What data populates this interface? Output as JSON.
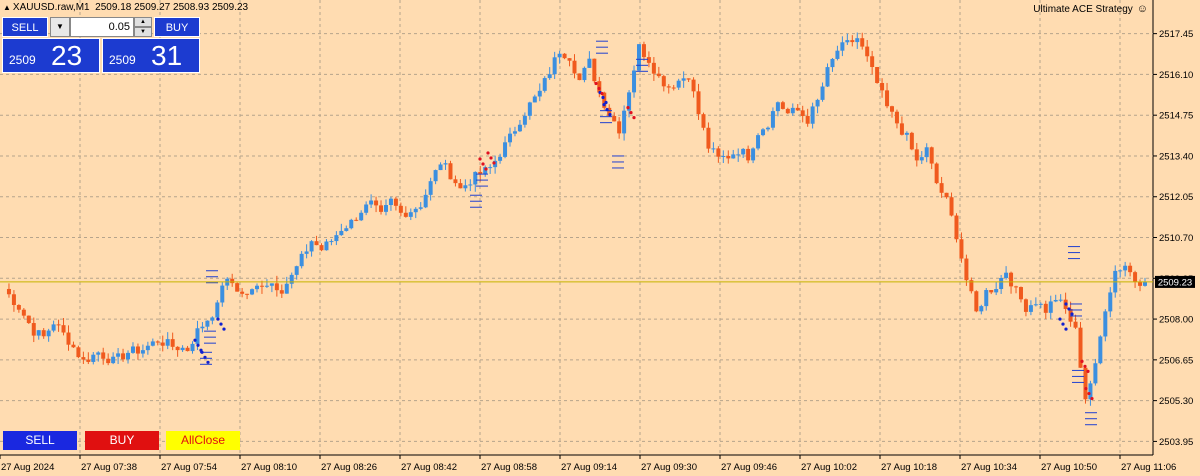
{
  "header": {
    "symbol": "XAUUSD.raw,M1",
    "ohlc": "2509.18 2509.27 2508.93 2509.23",
    "indicator_name": "Ultimate ACE Strategy",
    "indicator_icon": "smiley-icon"
  },
  "trade_panel": {
    "sell_label": "SELL",
    "buy_label": "BUY",
    "lot_value": "0.05",
    "sell_price_small": "2509",
    "sell_price_big": "23",
    "buy_price_small": "2509",
    "buy_price_big": "31"
  },
  "bottom_buttons": {
    "sell": "SELL",
    "buy": "BUY",
    "all_close": "AllClose"
  },
  "colors": {
    "background": "#ffdcb1",
    "grid": "#b6a48c",
    "bull": "#3b8fe0",
    "bear": "#f05a1e",
    "current_price_line": "#c8b400",
    "panel_blue": "#1c3bd0"
  },
  "chart_data": {
    "type": "candlestick",
    "current_price": "2509.23",
    "y_ticks": [
      "2517.45",
      "2516.10",
      "2514.75",
      "2513.40",
      "2512.05",
      "2510.70",
      "2509.35",
      "2508.00",
      "2506.65",
      "2505.30",
      "2503.95"
    ],
    "x_ticks": [
      "27 Aug 2024",
      "27 Aug 07:38",
      "27 Aug 07:54",
      "27 Aug 08:10",
      "27 Aug 08:26",
      "27 Aug 08:42",
      "27 Aug 08:58",
      "27 Aug 09:14",
      "27 Aug 09:30",
      "27 Aug 09:46",
      "27 Aug 10:02",
      "27 Aug 10:18",
      "27 Aug 10:34",
      "27 Aug 10:50",
      "27 Aug 11:06"
    ],
    "ylim": [
      2503.5,
      2518.1
    ],
    "grid": true,
    "close_path": [
      [
        0,
        2509.0
      ],
      [
        3,
        2508.4
      ],
      [
        6,
        2507.6
      ],
      [
        8,
        2507.4
      ],
      [
        10,
        2507.9
      ],
      [
        13,
        2507.3
      ],
      [
        16,
        2506.6
      ],
      [
        19,
        2506.9
      ],
      [
        22,
        2506.6
      ],
      [
        25,
        2506.9
      ],
      [
        28,
        2507.0
      ],
      [
        31,
        2507.3
      ],
      [
        34,
        2507.1
      ],
      [
        37,
        2507.0
      ],
      [
        39,
        2507.6
      ],
      [
        41,
        2508.0
      ],
      [
        43,
        2508.4
      ],
      [
        44,
        2509.2
      ],
      [
        46,
        2509.2
      ],
      [
        48,
        2508.8
      ],
      [
        50,
        2508.9
      ],
      [
        52,
        2509.2
      ],
      [
        54,
        2509.2
      ],
      [
        56,
        2509.0
      ],
      [
        58,
        2509.4
      ],
      [
        60,
        2510.0
      ],
      [
        62,
        2510.6
      ],
      [
        64,
        2510.3
      ],
      [
        66,
        2510.6
      ],
      [
        68,
        2511.0
      ],
      [
        70,
        2511.2
      ],
      [
        72,
        2511.6
      ],
      [
        74,
        2511.8
      ],
      [
        76,
        2511.4
      ],
      [
        78,
        2511.9
      ],
      [
        80,
        2511.5
      ],
      [
        82,
        2511.6
      ],
      [
        84,
        2511.8
      ],
      [
        86,
        2512.5
      ],
      [
        88,
        2513.2
      ],
      [
        90,
        2512.8
      ],
      [
        92,
        2512.3
      ],
      [
        94,
        2512.6
      ],
      [
        96,
        2512.8
      ],
      [
        98,
        2513.0
      ],
      [
        100,
        2513.5
      ],
      [
        102,
        2514.0
      ],
      [
        104,
        2514.6
      ],
      [
        106,
        2515.1
      ],
      [
        108,
        2515.5
      ],
      [
        110,
        2516.2
      ],
      [
        112,
        2516.9
      ],
      [
        114,
        2516.7
      ],
      [
        116,
        2515.9
      ],
      [
        118,
        2516.5
      ],
      [
        120,
        2515.5
      ],
      [
        122,
        2514.8
      ],
      [
        124,
        2514.3
      ],
      [
        126,
        2515.6
      ],
      [
        128,
        2517.0
      ],
      [
        130,
        2516.6
      ],
      [
        132,
        2516.0
      ],
      [
        134,
        2515.7
      ],
      [
        136,
        2515.9
      ],
      [
        138,
        2516.1
      ],
      [
        140,
        2514.8
      ],
      [
        142,
        2513.7
      ],
      [
        144,
        2513.3
      ],
      [
        146,
        2513.4
      ],
      [
        148,
        2513.6
      ],
      [
        150,
        2513.4
      ],
      [
        152,
        2514.2
      ],
      [
        154,
        2514.5
      ],
      [
        156,
        2515.2
      ],
      [
        158,
        2514.8
      ],
      [
        160,
        2514.9
      ],
      [
        162,
        2514.6
      ],
      [
        164,
        2515.2
      ],
      [
        166,
        2516.2
      ],
      [
        168,
        2516.9
      ],
      [
        170,
        2517.1
      ],
      [
        172,
        2517.3
      ],
      [
        174,
        2516.6
      ],
      [
        176,
        2515.8
      ],
      [
        178,
        2515.0
      ],
      [
        180,
        2514.5
      ],
      [
        182,
        2514.0
      ],
      [
        184,
        2513.2
      ],
      [
        186,
        2513.6
      ],
      [
        188,
        2512.5
      ],
      [
        190,
        2511.9
      ],
      [
        192,
        2510.8
      ],
      [
        194,
        2509.3
      ],
      [
        196,
        2508.2
      ],
      [
        198,
        2508.9
      ],
      [
        200,
        2509.1
      ],
      [
        202,
        2509.6
      ],
      [
        204,
        2508.9
      ],
      [
        206,
        2508.4
      ],
      [
        208,
        2508.6
      ],
      [
        210,
        2508.3
      ],
      [
        212,
        2508.7
      ],
      [
        214,
        2508.3
      ],
      [
        216,
        2507.6
      ],
      [
        218,
        2505.4
      ],
      [
        220,
        2506.4
      ],
      [
        222,
        2508.4
      ],
      [
        224,
        2509.6
      ],
      [
        226,
        2509.8
      ],
      [
        228,
        2509.3
      ],
      [
        230,
        2509.23
      ]
    ],
    "indicator_markers": {
      "dashes": [
        [
          200,
          2506.9
        ],
        [
          204,
          2507.6
        ],
        [
          206,
          2509.6
        ],
        [
          470,
          2512.1
        ],
        [
          476,
          2512.8
        ],
        [
          596,
          2517.2
        ],
        [
          600,
          2514.9
        ],
        [
          612,
          2513.4
        ],
        [
          636,
          2516.6
        ],
        [
          1068,
          2510.4
        ],
        [
          1070,
          2508.5
        ],
        [
          1072,
          2506.3
        ],
        [
          1085,
          2504.9
        ]
      ],
      "dots_blue": [
        [
          195,
          2507.3
        ],
        [
          202,
          2506.9
        ],
        [
          218,
          2508.0
        ],
        [
          600,
          2515.5
        ],
        [
          604,
          2515.1
        ],
        [
          1060,
          2508.0
        ],
        [
          1066,
          2508.5
        ]
      ],
      "dots_red": [
        [
          480,
          2513.3
        ],
        [
          488,
          2513.5
        ],
        [
          596,
          2515.8
        ],
        [
          628,
          2515.0
        ],
        [
          1082,
          2506.6
        ],
        [
          1086,
          2505.7
        ]
      ]
    }
  }
}
